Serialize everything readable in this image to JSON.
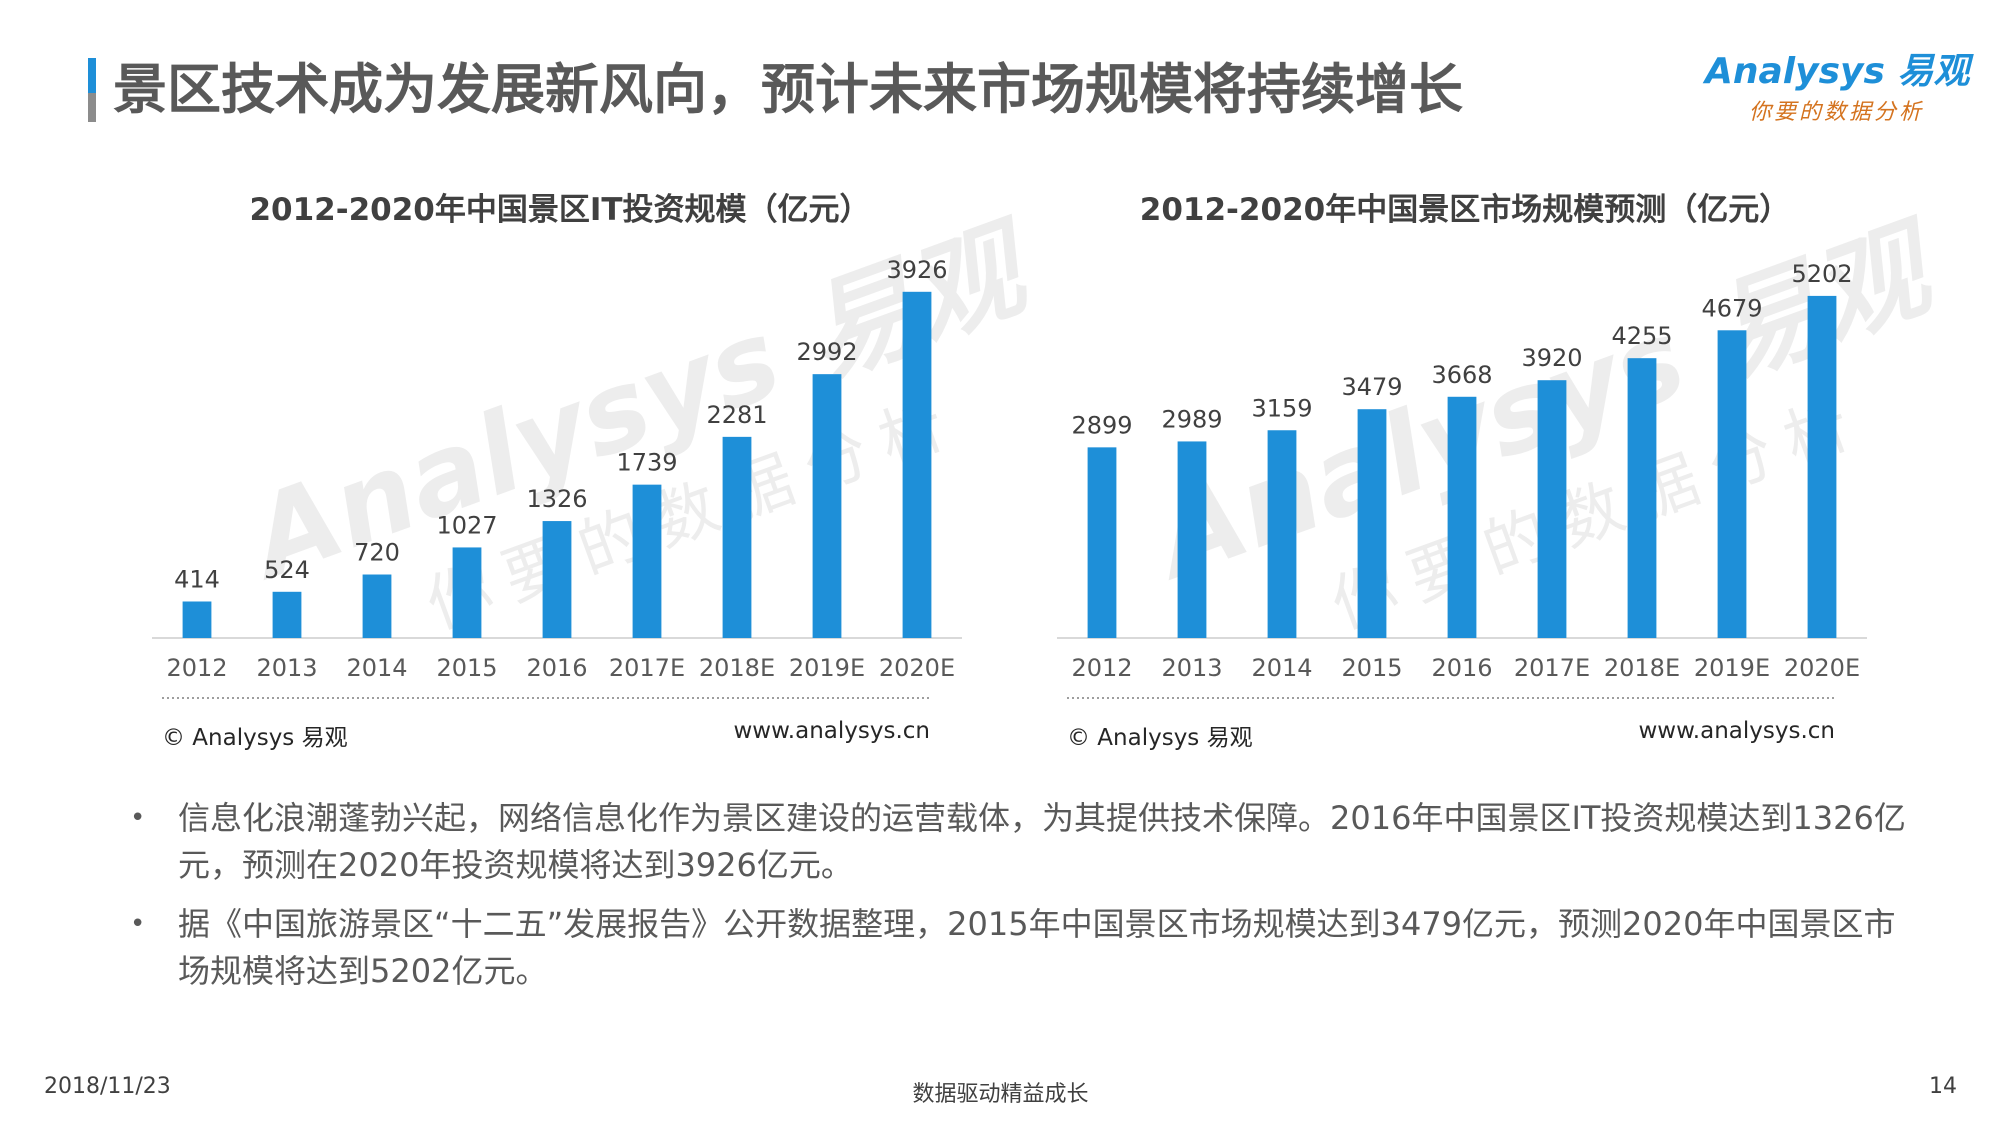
{
  "header": {
    "title": "景区技术成为发展新风向，预计未来市场规模将持续增长",
    "logo_main": "Analysys 易观",
    "logo_sub": "你要的数据分析"
  },
  "watermark": {
    "main": "Analysys 易观",
    "sub": "你要的数据分析"
  },
  "colors": {
    "bar": "#1e8fd8",
    "axis": "#d9d9d9",
    "title_accent": "#1e8fd8",
    "logo_sub": "#d4731f"
  },
  "chart_data": [
    {
      "type": "bar",
      "title": "2012-2020年中国景区IT投资规模（亿元）",
      "categories": [
        "2012",
        "2013",
        "2014",
        "2015",
        "2016",
        "2017E",
        "2018E",
        "2019E",
        "2020E"
      ],
      "values": [
        414,
        524,
        720,
        1027,
        1326,
        1739,
        2281,
        2992,
        3926
      ],
      "xlabel": "",
      "ylabel": "",
      "ylim": [
        0,
        4400
      ],
      "grid": false,
      "data_labels": true,
      "source": "© Analysys 易观",
      "url": "www.analysys.cn"
    },
    {
      "type": "bar",
      "title": "2012-2020年中国景区市场规模预测（亿元）",
      "categories": [
        "2012",
        "2013",
        "2014",
        "2015",
        "2016",
        "2017E",
        "2018E",
        "2019E",
        "2020E"
      ],
      "values": [
        2899,
        2989,
        3159,
        3479,
        3668,
        3920,
        4255,
        4679,
        5202
      ],
      "xlabel": "",
      "ylabel": "",
      "ylim": [
        0,
        5900
      ],
      "grid": false,
      "data_labels": true,
      "source": "© Analysys 易观",
      "url": "www.analysys.cn"
    }
  ],
  "bullets": [
    "信息化浪潮蓬勃兴起，网络信息化作为景区建设的运营载体，为其提供技术保障。2016年中国景区IT投资规模达到1326亿元，预测在2020年投资规模将达到3926亿元。",
    "据《中国旅游景区“十二五”发展报告》公开数据整理，2015年中国景区市场规模达到3479亿元，预测2020年中国景区市场规模将达到5202亿元。"
  ],
  "bullet_marker": "•",
  "footer": {
    "date": "2018/11/23",
    "slogan": "数据驱动精益成长",
    "page": "14"
  }
}
